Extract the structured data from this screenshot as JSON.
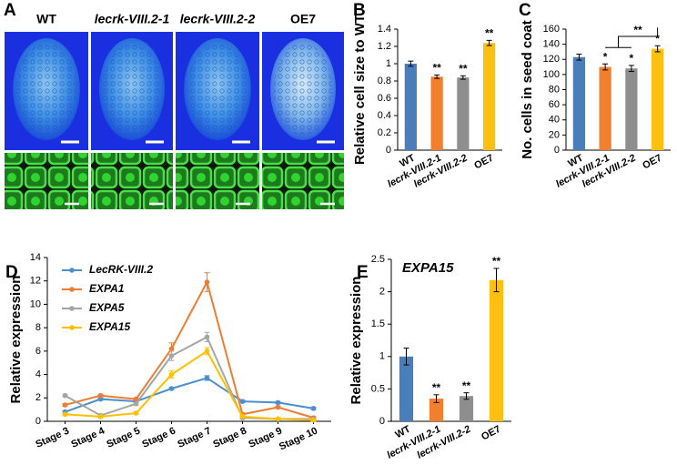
{
  "panel_a": {
    "label": "A",
    "genotypes": [
      "WT",
      "lecrk-VIII.2-1",
      "lecrk-VIII.2-2",
      "OE7"
    ]
  },
  "chart_data": [
    {
      "type": "bar",
      "panel_label": "B",
      "ylabel": "Relative cell size to WT",
      "categories": [
        "WT",
        "lecrk-VIII.2-1",
        "lecrk-VIII.2-2",
        "OE7"
      ],
      "values": [
        1.0,
        0.85,
        0.84,
        1.24
      ],
      "errors": [
        0.03,
        0.02,
        0.02,
        0.03
      ],
      "colors": [
        "#4a7ebb",
        "#f07f2e",
        "#8e8e8e",
        "#fdbf10"
      ],
      "significance": [
        null,
        "**",
        "**",
        "**"
      ],
      "ylim": [
        0,
        1.4
      ],
      "yticks": [
        0,
        0.2,
        0.4,
        0.6,
        0.8,
        1,
        1.2,
        1.4
      ]
    },
    {
      "type": "bar",
      "panel_label": "C",
      "ylabel": "No. cells in seed coat",
      "categories": [
        "WT",
        "lecrk-VIII.2-1",
        "lecrk-VIII.2-2",
        "OE7"
      ],
      "values": [
        123,
        110,
        108,
        134
      ],
      "errors": [
        4,
        4,
        4,
        4
      ],
      "colors": [
        "#4a7ebb",
        "#f07f2e",
        "#8e8e8e",
        "#fdbf10"
      ],
      "significance": [
        null,
        "*",
        "*",
        "*"
      ],
      "comparison_label": "**",
      "ylim": [
        0,
        160
      ],
      "yticks": [
        0,
        20,
        40,
        60,
        80,
        100,
        120,
        140,
        160
      ]
    },
    {
      "type": "line",
      "panel_label": "D",
      "ylabel": "Relative expression",
      "categories": [
        "Stage 3",
        "Stage 4",
        "Stage 5",
        "Stage 6",
        "Stage 7",
        "Stage 8",
        "Stage 9",
        "Stage 10"
      ],
      "series": [
        {
          "name": "LecRK-VIII.2",
          "color": "#4a8fce",
          "values": [
            0.8,
            1.9,
            1.7,
            2.8,
            3.7,
            1.7,
            1.6,
            1.1
          ],
          "errors": [
            0.1,
            0.1,
            0.1,
            0.1,
            0.2,
            0.1,
            0.1,
            0.1
          ]
        },
        {
          "name": "EXPA1",
          "color": "#ed7d31",
          "values": [
            1.4,
            2.2,
            1.9,
            6.2,
            11.9,
            0.6,
            1.2,
            0.3
          ],
          "errors": [
            0.1,
            0.1,
            0.1,
            0.5,
            0.8,
            0.1,
            0.1,
            0.1
          ]
        },
        {
          "name": "EXPA5",
          "color": "#a5a5a5",
          "values": [
            2.2,
            0.5,
            1.5,
            5.6,
            7.2,
            0.3,
            0.2,
            0.2
          ],
          "errors": [
            0.1,
            0.1,
            0.1,
            0.4,
            0.4,
            0.1,
            0.1,
            0.1
          ]
        },
        {
          "name": "EXPA15",
          "color": "#ffc000",
          "values": [
            0.6,
            0.4,
            0.7,
            4.0,
            6.0,
            0.4,
            0.2,
            0.1
          ],
          "errors": [
            0.1,
            0.1,
            0.1,
            0.3,
            0.3,
            0.1,
            0.1,
            0.1
          ]
        }
      ],
      "ylim": [
        0,
        14
      ],
      "yticks": [
        0,
        2,
        4,
        6,
        8,
        10,
        12,
        14
      ]
    },
    {
      "type": "bar",
      "panel_label": "E",
      "title": "EXPA15",
      "ylabel": "Relative expression",
      "categories": [
        "WT",
        "lecrk-VIII.2-1",
        "lecrk-VIII.2-2",
        "OE7"
      ],
      "values": [
        1.0,
        0.35,
        0.39,
        2.18
      ],
      "errors": [
        0.13,
        0.06,
        0.05,
        0.18
      ],
      "colors": [
        "#4a7ebb",
        "#f07f2e",
        "#8e8e8e",
        "#fdbf10"
      ],
      "significance": [
        null,
        "**",
        "**",
        "**"
      ],
      "ylim": [
        0,
        2.5
      ],
      "yticks": [
        0,
        0.5,
        1,
        1.5,
        2,
        2.5
      ]
    }
  ]
}
